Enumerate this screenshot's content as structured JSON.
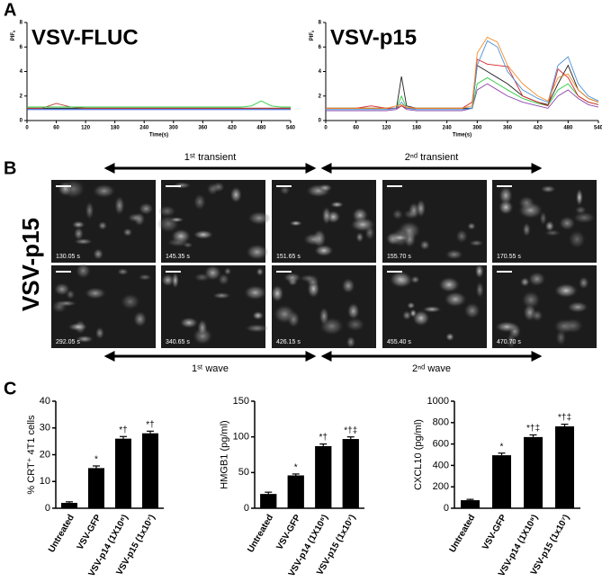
{
  "panel_labels": [
    "A",
    "B",
    "C"
  ],
  "chart_data": [
    {
      "type": "line",
      "title": "VSV-FLUC",
      "xlabel": "Time(s)",
      "ylabel": "PIF",
      "ylabel_subscript": "0",
      "x": [
        0,
        30,
        60,
        90,
        120,
        140,
        150,
        160,
        180,
        210,
        240,
        270,
        290,
        300,
        320,
        340,
        360,
        390,
        420,
        440,
        460,
        480,
        500,
        520,
        540
      ],
      "xlim": [
        0,
        540
      ],
      "xticks": [
        0,
        60,
        120,
        180,
        240,
        300,
        360,
        420,
        480,
        540
      ],
      "ylim": [
        0,
        8
      ],
      "yticks": [
        0,
        2,
        4,
        6,
        8
      ],
      "series": [
        {
          "color": "#1f4fd6",
          "values": [
            0.9,
            0.9,
            0.9,
            0.9,
            0.9,
            0.9,
            0.9,
            0.9,
            0.9,
            0.9,
            0.9,
            0.9,
            0.9,
            0.9,
            0.9,
            0.9,
            0.9,
            0.9,
            0.9,
            0.9,
            0.9,
            0.9,
            0.9,
            0.9,
            0.9
          ]
        },
        {
          "color": "#222222",
          "values": [
            1,
            1,
            1,
            1,
            1,
            1,
            1,
            1,
            1,
            1,
            1,
            1,
            1,
            1,
            1,
            1,
            1,
            1,
            1,
            1,
            1,
            1,
            1,
            1,
            1
          ]
        },
        {
          "color": "#c0392b",
          "values": [
            1,
            1,
            1.4,
            1.1,
            1,
            1,
            1,
            1,
            1,
            1,
            1,
            1,
            1,
            1,
            1,
            1,
            1,
            1,
            1,
            1,
            1,
            1,
            1,
            1,
            1
          ]
        },
        {
          "color": "#2ecc40",
          "values": [
            1.1,
            1.1,
            1.1,
            1.1,
            1.1,
            1.1,
            1.1,
            1.1,
            1.1,
            1.1,
            1.1,
            1.1,
            1.1,
            1.1,
            1.1,
            1.1,
            1.1,
            1.1,
            1.1,
            1.1,
            1.2,
            1.6,
            1.2,
            1.1,
            1.1
          ]
        }
      ]
    },
    {
      "type": "line",
      "title": "VSV-p15",
      "xlabel": "Time(s)",
      "ylabel": "PIF",
      "ylabel_subscript": "0",
      "x": [
        0,
        30,
        60,
        90,
        120,
        140,
        150,
        160,
        180,
        210,
        240,
        270,
        290,
        300,
        320,
        340,
        360,
        390,
        420,
        440,
        460,
        480,
        500,
        520,
        540
      ],
      "xlim": [
        0,
        540
      ],
      "xticks": [
        0,
        60,
        120,
        180,
        240,
        300,
        360,
        420,
        480,
        540
      ],
      "ylim": [
        0,
        8
      ],
      "yticks": [
        0,
        2,
        4,
        6,
        8
      ],
      "series": [
        {
          "color": "#8e44ad",
          "values": [
            0.8,
            0.8,
            0.8,
            0.8,
            0.8,
            0.9,
            1.2,
            0.9,
            0.8,
            0.8,
            0.8,
            0.8,
            1,
            2.5,
            3,
            2.5,
            2,
            1.5,
            1.2,
            1,
            2,
            2.5,
            1.8,
            1.3,
            1.1
          ]
        },
        {
          "color": "#2ecc40",
          "values": [
            1,
            1,
            1,
            1,
            1,
            1,
            2,
            1,
            1,
            1,
            1,
            1,
            1,
            3,
            3.5,
            3,
            2.5,
            1.8,
            1.4,
            1.2,
            2.5,
            3,
            2,
            1.5,
            1.3
          ]
        },
        {
          "color": "#222222",
          "values": [
            1,
            1,
            1,
            1,
            1,
            1,
            3.6,
            1.2,
            1,
            1,
            1,
            1,
            1,
            4.5,
            4,
            3.5,
            3,
            2,
            1.5,
            1.3,
            3,
            4.5,
            2.5,
            1.8,
            1.5
          ]
        },
        {
          "color": "#d62728",
          "values": [
            1,
            1,
            1,
            1.2,
            1,
            1,
            1.2,
            1,
            1,
            1,
            1,
            1,
            1.5,
            5,
            4.6,
            4.5,
            4.4,
            2,
            1.5,
            1.2,
            4.2,
            3.5,
            2,
            1.5,
            1.3
          ]
        },
        {
          "color": "#4a90d9",
          "values": [
            0.9,
            0.9,
            0.9,
            0.9,
            0.9,
            1,
            1.5,
            1,
            0.9,
            0.9,
            0.9,
            0.9,
            1,
            4.5,
            6.5,
            6,
            4,
            2.5,
            1.8,
            1.5,
            4.5,
            5.2,
            3,
            2,
            1.6
          ]
        },
        {
          "color": "#f28e2b",
          "values": [
            1,
            1,
            1,
            1,
            1,
            1.2,
            1.3,
            1.1,
            1,
            1,
            1,
            1,
            1.2,
            5.5,
            6.8,
            6.4,
            4.5,
            3,
            2,
            1.6,
            3.5,
            3.8,
            2.5,
            1.8,
            1.5
          ]
        }
      ]
    },
    {
      "type": "bar",
      "ylabel": "% CRT⁺ 4T1 cells",
      "color": "#000000",
      "categories": [
        "Untreated",
        "VSV-GFP",
        "VSV-p14 (1X10⁸)",
        "VSV-p15 (1x10⁷)"
      ],
      "values": [
        2,
        15,
        26,
        28
      ],
      "errors": [
        0.4,
        0.8,
        0.8,
        0.8
      ],
      "annotations": [
        null,
        "*",
        "*†",
        "*†"
      ],
      "ylim": [
        0,
        40
      ],
      "yticks": [
        0,
        10,
        20,
        30,
        40
      ]
    },
    {
      "type": "bar",
      "ylabel": "HMGB1 (pg/ml)",
      "color": "#000000",
      "categories": [
        "Untreated",
        "VSV-GFP",
        "VSV-p14 (1X10⁸)",
        "VSV-p15 (1x10⁷)"
      ],
      "values": [
        20,
        46,
        87,
        97
      ],
      "errors": [
        2.5,
        2,
        3,
        3
      ],
      "annotations": [
        null,
        "*",
        "*†",
        "*†‡"
      ],
      "ylim": [
        0,
        150
      ],
      "yticks": [
        0,
        50,
        100,
        150
      ]
    },
    {
      "type": "bar",
      "ylabel": "CXCL10 (pg/ml)",
      "color": "#000000",
      "categories": [
        "Untreated",
        "VSV-GFP",
        "VSV-p14 (1X10⁸)",
        "VSV-p15 (1x10⁷)"
      ],
      "values": [
        75,
        495,
        665,
        765
      ],
      "errors": [
        8,
        20,
        20,
        20
      ],
      "annotations": [
        null,
        "*",
        "*†‡",
        "*†‡"
      ],
      "ylim": [
        0,
        1000
      ],
      "yticks": [
        0,
        200,
        400,
        600,
        800,
        1000
      ]
    }
  ],
  "microscopy": {
    "row_label": "VSV-p15",
    "top_arrows": [
      "1ˢᵗ transient",
      "2ⁿᵈ transient"
    ],
    "bottom_arrows": [
      "1ˢᵗ wave",
      "2ⁿᵈ wave"
    ],
    "timestamps": [
      [
        "130.05 s",
        "145.35 s",
        "151.65 s",
        "155.70 s",
        "170.55 s"
      ],
      [
        "292.05 s",
        "340.65 s",
        "426.15 s",
        "455.40 s",
        "470.70 s"
      ]
    ]
  }
}
